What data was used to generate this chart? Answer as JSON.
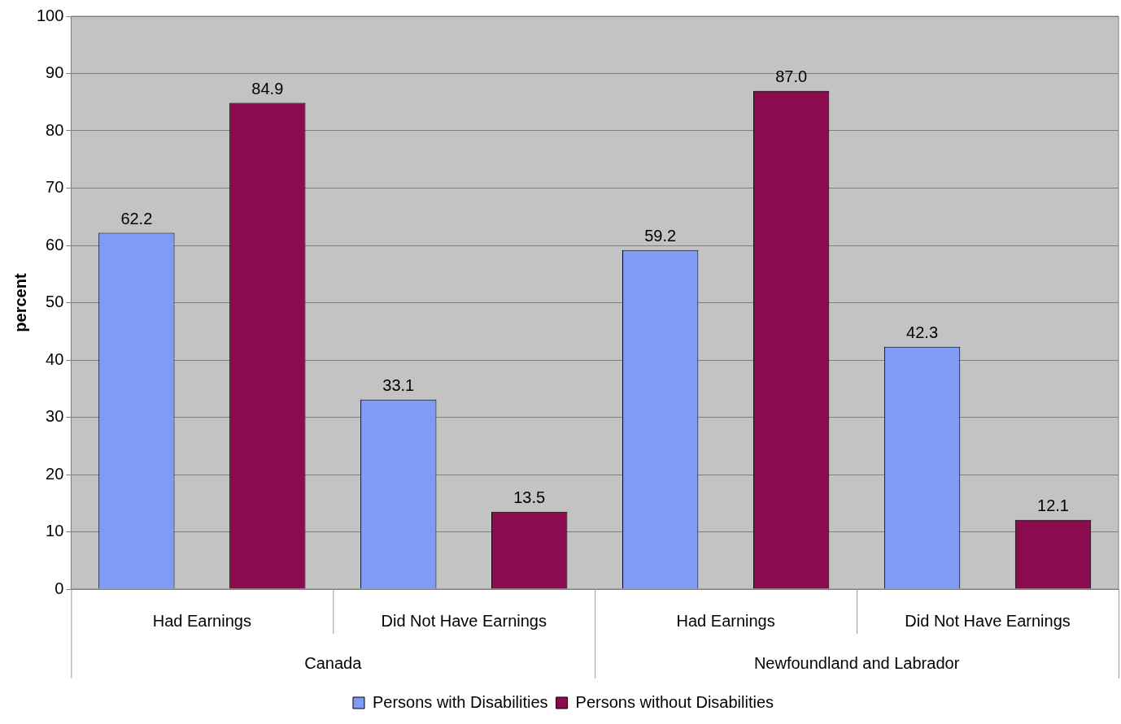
{
  "chart_data": {
    "type": "bar",
    "ylabel": "percent",
    "categories": [
      "Had Earnings",
      "Did Not Have Earnings",
      "Had Earnings",
      "Did Not Have Earnings"
    ],
    "series": [
      {
        "name": "Persons with Disabilities",
        "color": "#7f9cf5",
        "values": [
          62.2,
          33.1,
          59.2,
          42.3
        ]
      },
      {
        "name": "Persons without Disabilities",
        "color": "#8c0a4e",
        "values": [
          84.9,
          13.5,
          87.0,
          12.1
        ]
      }
    ],
    "value_labels": [
      [
        "62.2",
        "33.1",
        "59.2",
        "42.3"
      ],
      [
        "84.9",
        "13.5",
        "87.0",
        "12.1"
      ]
    ],
    "annotations": [
      "Canada",
      "Newfoundland and Labrador"
    ],
    "ylim": [
      0,
      100
    ],
    "yticks": [
      0,
      10,
      20,
      30,
      40,
      50,
      60,
      70,
      80,
      90,
      100
    ],
    "grid": "y",
    "legend": "bottom"
  }
}
